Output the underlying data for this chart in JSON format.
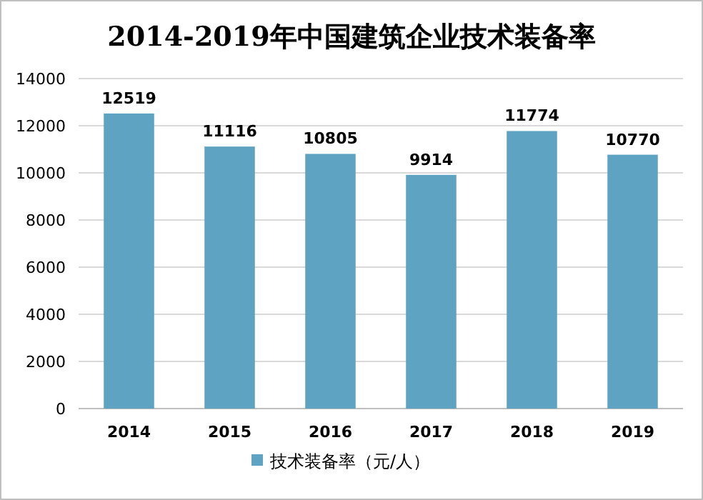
{
  "chart_data": {
    "type": "bar",
    "title": "2014-2019年中国建筑企业技术装备率",
    "categories": [
      "2014",
      "2015",
      "2016",
      "2017",
      "2018",
      "2019"
    ],
    "series": [
      {
        "name": "技术装备率（元/人）",
        "color": "#5fa3c2",
        "values": [
          12519,
          11116,
          10805,
          9914,
          11774,
          10770
        ]
      }
    ],
    "ylim": [
      0,
      14000
    ],
    "yticks": [
      0,
      2000,
      4000,
      6000,
      8000,
      10000,
      12000,
      14000
    ],
    "grid": "y",
    "legend": "bottom",
    "data_labels": true
  }
}
